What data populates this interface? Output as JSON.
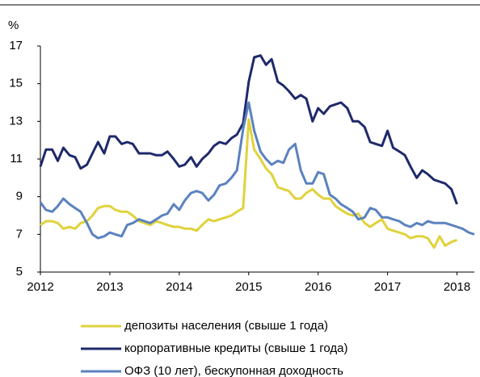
{
  "chart_data": {
    "type": "line",
    "y_label": "%",
    "x": [
      2012,
      2012.08,
      2012.17,
      2012.25,
      2012.33,
      2012.42,
      2012.5,
      2012.58,
      2012.67,
      2012.75,
      2012.83,
      2012.92,
      2013,
      2013.08,
      2013.17,
      2013.25,
      2013.33,
      2013.42,
      2013.5,
      2013.58,
      2013.67,
      2013.75,
      2013.83,
      2013.92,
      2014,
      2014.08,
      2014.17,
      2014.25,
      2014.33,
      2014.42,
      2014.5,
      2014.58,
      2014.67,
      2014.75,
      2014.83,
      2014.92,
      2015,
      2015.08,
      2015.17,
      2015.25,
      2015.33,
      2015.42,
      2015.5,
      2015.58,
      2015.67,
      2015.75,
      2015.83,
      2015.92,
      2016,
      2016.08,
      2016.17,
      2016.25,
      2016.33,
      2016.42,
      2016.5,
      2016.58,
      2016.67,
      2016.75,
      2016.83,
      2016.92,
      2017,
      2017.08,
      2017.17,
      2017.25,
      2017.33,
      2017.42,
      2017.5,
      2017.58,
      2017.67,
      2017.75,
      2017.83,
      2017.92,
      2018,
      2018.08,
      2018.17,
      2018.25
    ],
    "series": [
      {
        "name": "депозиты населения (свыше 1 года)",
        "color": "#e0d23c",
        "values": [
          7.5,
          7.7,
          7.7,
          7.6,
          7.3,
          7.4,
          7.3,
          7.6,
          7.7,
          8.0,
          8.4,
          8.5,
          8.5,
          8.3,
          8.2,
          8.2,
          8.0,
          7.7,
          7.6,
          7.5,
          7.7,
          7.6,
          7.5,
          7.4,
          7.4,
          7.3,
          7.3,
          7.2,
          7.5,
          7.8,
          7.7,
          7.8,
          7.9,
          8.0,
          8.2,
          8.4,
          13.1,
          11.5,
          11.0,
          10.5,
          10.2,
          9.5,
          9.4,
          9.3,
          8.9,
          8.9,
          9.2,
          9.4,
          9.1,
          8.9,
          8.9,
          8.5,
          8.3,
          8.1,
          8.0,
          8.1,
          7.6,
          7.4,
          7.6,
          7.8,
          7.3,
          7.2,
          7.1,
          7.0,
          6.8,
          6.9,
          6.9,
          6.8,
          6.3,
          6.9,
          6.4,
          6.6,
          6.7,
          null,
          null,
          null
        ]
      },
      {
        "name": "корпоративные кредиты (свыше 1 года)",
        "color": "#1f2a6b",
        "values": [
          10.6,
          11.5,
          11.5,
          10.9,
          11.6,
          11.2,
          11.1,
          10.5,
          10.7,
          11.3,
          11.9,
          11.3,
          12.2,
          12.2,
          11.8,
          11.9,
          11.8,
          11.3,
          11.3,
          11.3,
          11.2,
          11.2,
          11.4,
          11.0,
          10.6,
          10.7,
          11.1,
          10.6,
          11.0,
          11.3,
          11.7,
          11.9,
          11.8,
          12.1,
          12.3,
          12.9,
          15.1,
          16.4,
          16.5,
          16.0,
          16.3,
          15.1,
          14.9,
          14.6,
          14.2,
          14.4,
          14.2,
          13.0,
          13.7,
          13.4,
          13.8,
          13.9,
          14.0,
          13.7,
          13.0,
          13.0,
          12.7,
          11.9,
          11.8,
          11.7,
          12.5,
          11.6,
          11.4,
          11.2,
          10.6,
          10.0,
          10.4,
          10.2,
          9.9,
          9.8,
          9.7,
          9.4,
          8.6,
          null,
          null,
          null
        ]
      },
      {
        "name": "ОФЗ (10 лет), бескупонная доходность",
        "color": "#5b82c0",
        "values": [
          8.7,
          8.3,
          8.2,
          8.5,
          8.9,
          8.6,
          8.4,
          8.2,
          7.6,
          7.0,
          6.8,
          6.9,
          7.1,
          7.0,
          6.9,
          7.5,
          7.6,
          7.8,
          7.7,
          7.6,
          7.8,
          8.0,
          8.1,
          8.6,
          8.3,
          8.8,
          9.2,
          9.3,
          9.2,
          8.8,
          9.1,
          9.6,
          9.7,
          10.0,
          10.4,
          12.6,
          14.0,
          12.5,
          11.4,
          11.0,
          10.7,
          10.9,
          10.8,
          11.5,
          11.8,
          10.4,
          9.7,
          9.7,
          10.3,
          10.2,
          9.1,
          8.9,
          8.6,
          8.4,
          8.2,
          7.8,
          7.9,
          8.4,
          8.3,
          7.9,
          7.9,
          7.8,
          7.7,
          7.5,
          7.4,
          7.6,
          7.5,
          7.7,
          7.6,
          7.6,
          7.6,
          7.5,
          7.4,
          7.3,
          7.1,
          7.0
        ]
      }
    ],
    "xlim": [
      2012,
      2018.25
    ],
    "xticks": [
      2012,
      2013,
      2014,
      2015,
      2016,
      2017,
      2018
    ],
    "ylim": [
      5,
      17
    ],
    "yticks": [
      5,
      7,
      9,
      11,
      13,
      15,
      17
    ],
    "grid": false
  }
}
